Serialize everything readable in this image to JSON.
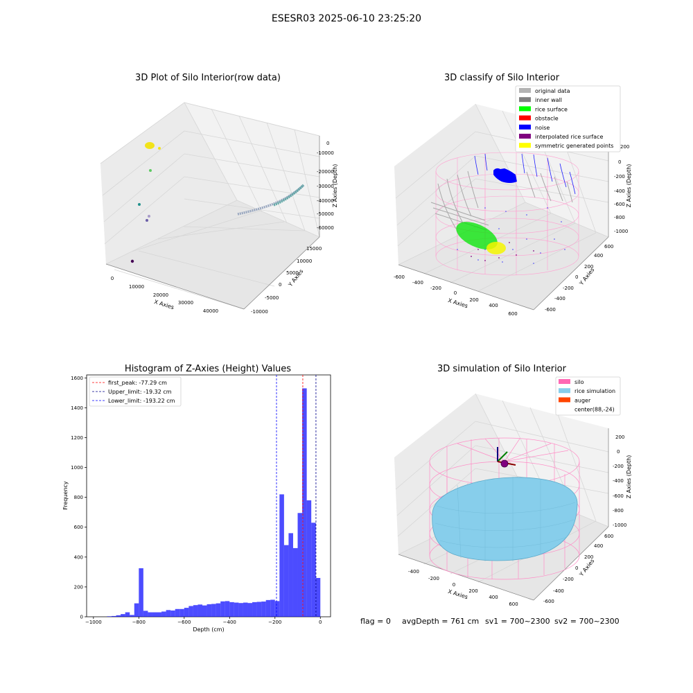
{
  "suptitle": "ESESR03 2025-06-10 23:25:20",
  "footer": {
    "flag": "flag = 0",
    "avg": "avgDepth = 761 cm",
    "sv1": "sv1 = 700~2300",
    "sv2": "sv2 = 700~2300"
  },
  "panel1": {
    "title": "3D Plot of Silo Interior(row data)",
    "xlabel": "X Axies",
    "ylabel": "Y Axies",
    "zlabel": "Z Axies (Depth)",
    "xticks": [
      "0",
      "10000",
      "20000",
      "30000",
      "40000"
    ],
    "yticks": [
      "-10000",
      "-5000",
      "0",
      "5000",
      "10000",
      "15000"
    ],
    "zticks": [
      "0",
      "-10000",
      "-20000",
      "-30000",
      "-40000",
      "-50000",
      "-60000"
    ],
    "colors": {
      "yellow": "#f2e31a",
      "green": "#5ec962",
      "teal": "#21918c",
      "lavender": "#a89bc9",
      "purple": "#440154",
      "gray": "#9aa8c0"
    }
  },
  "panel2": {
    "title": "3D classify of Silo Interior",
    "xlabel": "X Axies",
    "ylabel": "Y Axies",
    "zlabel": "Z Axies (Depth)",
    "xticks": [
      "-600",
      "-400",
      "-200",
      "0",
      "200",
      "400",
      "600"
    ],
    "yticks": [
      "-600",
      "-400",
      "-200",
      "0",
      "200",
      "400",
      "600"
    ],
    "zticks": [
      "0",
      "-200",
      "-400",
      "-600",
      "-800",
      "-1000"
    ],
    "ztop_tick": "200",
    "legend": [
      {
        "label": "original data",
        "color": "#b3b3b3"
      },
      {
        "label": "inner wall",
        "color": "#808080"
      },
      {
        "label": "rice surface",
        "color": "#00ff00"
      },
      {
        "label": "obstacle",
        "color": "#ff0000"
      },
      {
        "label": "noise",
        "color": "#0000ff"
      },
      {
        "label": "interpolated rice surface",
        "color": "#800080"
      },
      {
        "label": "symmetric generated points",
        "color": "#ffff00"
      }
    ]
  },
  "panel4": {
    "title": "3D simulation of Silo Interior",
    "xlabel": "X Axies",
    "ylabel": "Y Axies",
    "zlabel": "Z Axies (Depth)",
    "xticks": [
      "-400",
      "-200",
      "0",
      "200",
      "400",
      "600"
    ],
    "yticks": [
      "-600",
      "-400",
      "-200",
      "0",
      "200",
      "400",
      "600"
    ],
    "zticks": [
      "200",
      "0",
      "-200",
      "-400",
      "-600",
      "-800",
      "-1000"
    ],
    "legend": [
      {
        "label": "silo",
        "color": "#ff69b4"
      },
      {
        "label": "rice simulation",
        "color": "#87ceeb"
      },
      {
        "label": "auger",
        "color": "#ff4500"
      },
      {
        "label": "center(88,-24)",
        "color": ""
      }
    ]
  },
  "chart_data": {
    "type": "bar",
    "title": "Histogram of Z-Axies (Height) Values",
    "xlabel": "Depth (cm)",
    "ylabel": "Frequency",
    "xlim": [
      -1030,
      45
    ],
    "ylim": [
      0,
      1620
    ],
    "xticks": [
      -1000,
      -800,
      -600,
      -400,
      -200,
      0
    ],
    "yticks": [
      0,
      200,
      400,
      600,
      800,
      1000,
      1200,
      1400,
      1600
    ],
    "bar_color": "#0000ff",
    "bin_edges": [
      -940,
      -920,
      -900,
      -880,
      -860,
      -840,
      -820,
      -800,
      -780,
      -760,
      -740,
      -720,
      -700,
      -680,
      -660,
      -640,
      -620,
      -600,
      -580,
      -560,
      -540,
      -520,
      -500,
      -480,
      -460,
      -440,
      -420,
      -400,
      -380,
      -360,
      -340,
      -320,
      -300,
      -280,
      -260,
      -240,
      -220,
      -200,
      -180,
      -160,
      -140,
      -120,
      -100,
      -80,
      -60,
      -40,
      -20,
      0
    ],
    "values": [
      3,
      5,
      10,
      18,
      30,
      12,
      90,
      325,
      40,
      30,
      30,
      30,
      35,
      45,
      42,
      52,
      52,
      60,
      72,
      78,
      82,
      76,
      84,
      86,
      90,
      103,
      105,
      98,
      95,
      92,
      95,
      92,
      98,
      100,
      102,
      112,
      114,
      105,
      820,
      480,
      560,
      460,
      695,
      1530,
      780,
      630,
      260
    ],
    "vlines": [
      {
        "x": -77.29,
        "color": "#ff0000",
        "label": "first_peak: -77.29 cm"
      },
      {
        "x": -19.32,
        "color": "#00008b",
        "label": "Upper_limit: -19.32 cm"
      },
      {
        "x": -193.22,
        "color": "#0000ff",
        "label": "Lower_limit: -193.22 cm"
      }
    ],
    "legend_position": "top-left"
  }
}
